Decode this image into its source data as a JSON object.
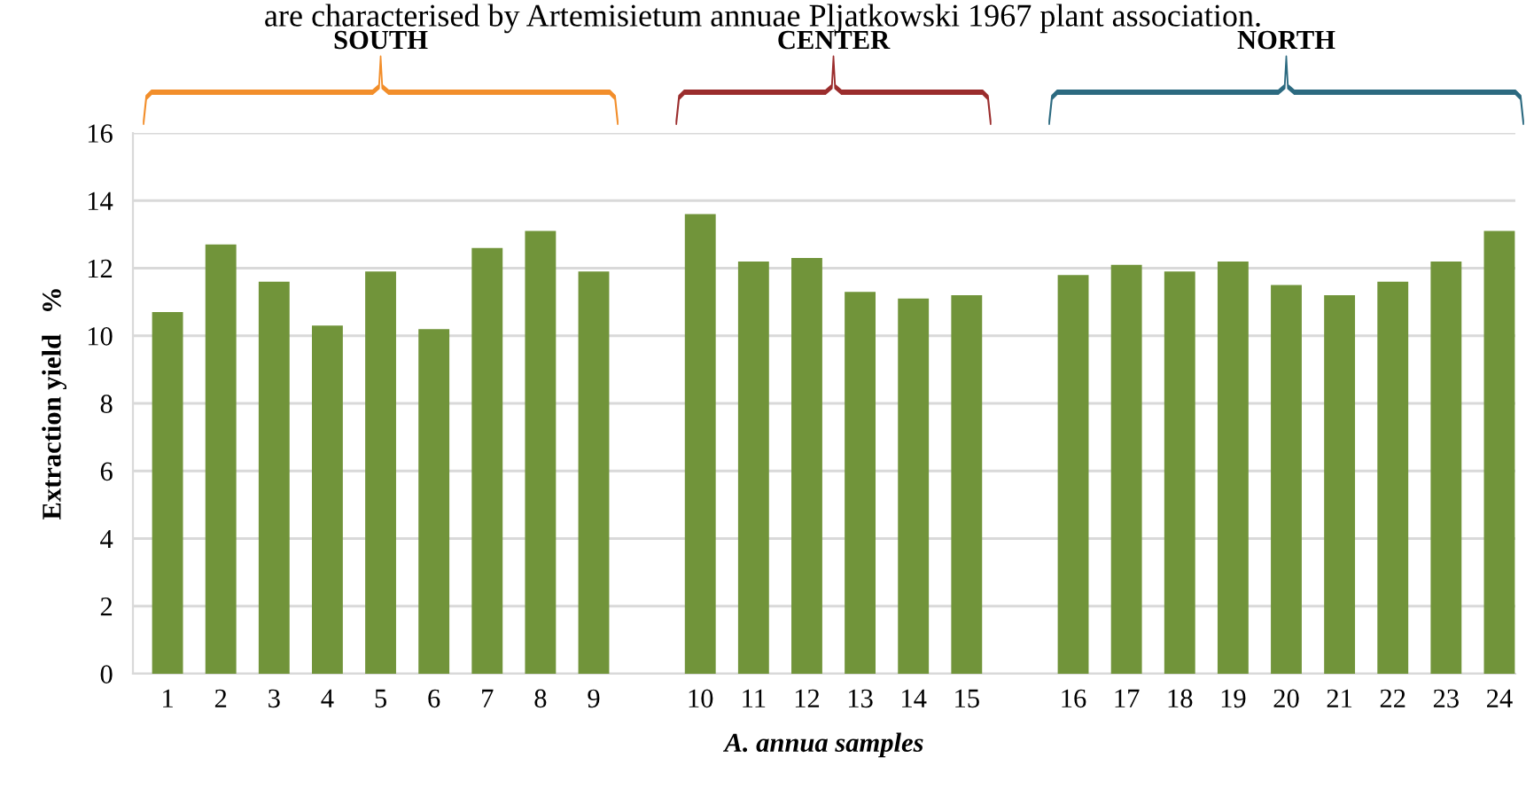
{
  "chart_data": {
    "type": "bar",
    "xlabel": "A. annua samples",
    "ylabel": "Extraction yield   %",
    "annotations": [
      "are characterised by Artemisietum annuae Pljatkowski 1967 plant association.",
      "SOUTH",
      "CENTER",
      "NORTH"
    ],
    "categories": [
      "1",
      "2",
      "3",
      "4",
      "5",
      "6",
      "7",
      "8",
      "9",
      null,
      "10",
      "11",
      "12",
      "13",
      "14",
      "15",
      null,
      "16",
      "17",
      "18",
      "19",
      "20",
      "21",
      "22",
      "23",
      "24"
    ],
    "values": [
      10.7,
      12.7,
      11.6,
      10.3,
      11.9,
      10.2,
      12.6,
      13.1,
      11.9,
      null,
      13.6,
      12.2,
      12.3,
      11.3,
      11.1,
      11.2,
      null,
      11.8,
      12.1,
      11.9,
      12.2,
      11.5,
      11.2,
      11.6,
      12.2,
      13.1
    ],
    "color": "#71943a",
    "ylim": [
      0,
      16
    ],
    "yticks": [
      0,
      2,
      4,
      6,
      8,
      10,
      12,
      14,
      16
    ],
    "grid": "y"
  }
}
